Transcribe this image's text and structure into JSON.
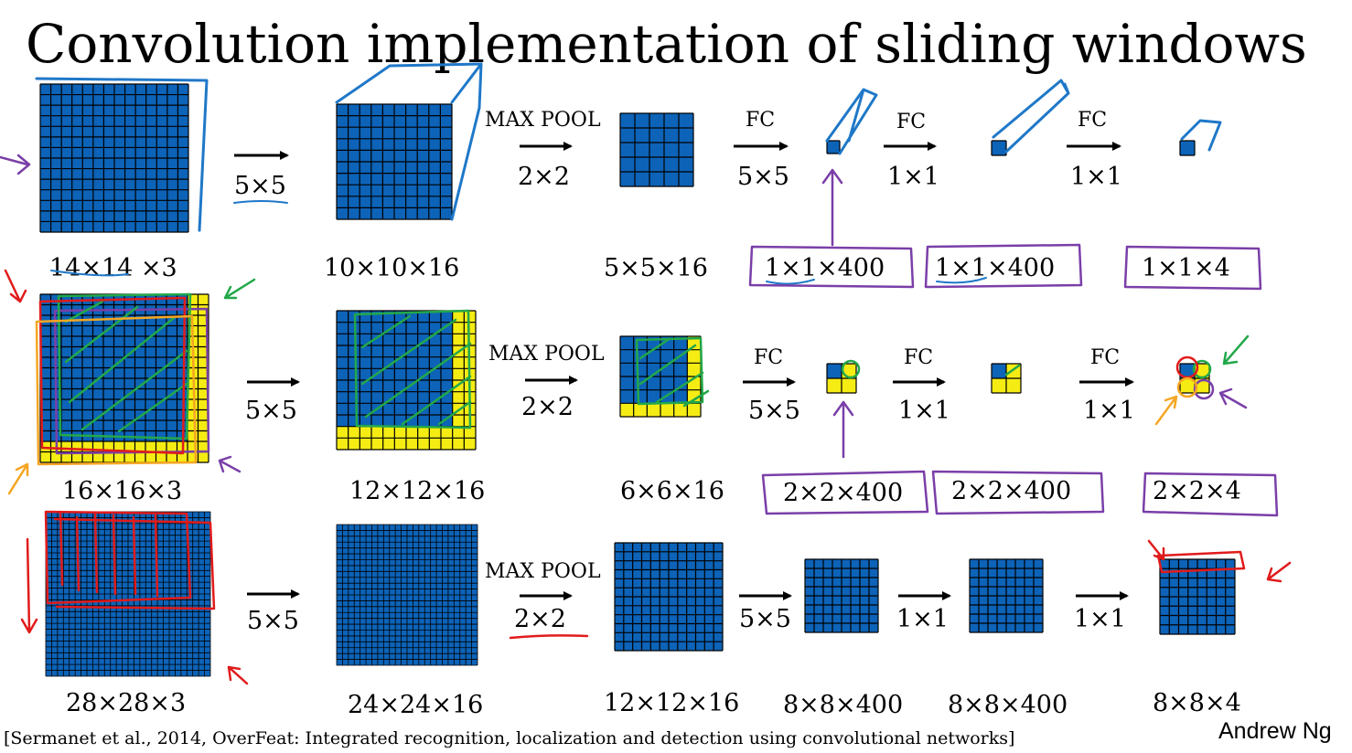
{
  "title": "Convolution implementation of sliding windows",
  "colors": {
    "grid_blue": "#0d63b8",
    "grid_yellow": "#f5ec14",
    "annot_blue": "#1f78c8",
    "annot_purple": "#7a3fa8",
    "annot_green": "#22a84a",
    "annot_red": "#e11b1b",
    "annot_orange": "#f5a623"
  },
  "rows": [
    {
      "input_label": "14×14 ×3",
      "conv": {
        "label": "5×5"
      },
      "conv_out_label": "10×10×16",
      "pool": {
        "name": "MAX POOL",
        "size": "2×2"
      },
      "pool_out_label": "5×5×16",
      "fc1": {
        "name": "FC",
        "size": "5×5"
      },
      "fc1_out_label": "1×1×400",
      "fc2": {
        "name": "FC",
        "size": "1×1"
      },
      "fc2_out_label": "1×1×400",
      "fc3": {
        "name": "FC",
        "size": "1×1"
      },
      "out_label": "1×1×4"
    },
    {
      "input_label": "16×16×3",
      "conv": {
        "label": "5×5"
      },
      "conv_out_label": "12×12×16",
      "pool": {
        "name": "MAX POOL",
        "size": "2×2"
      },
      "pool_out_label": "6×6×16",
      "fc1": {
        "name": "FC",
        "size": "5×5"
      },
      "fc1_out_label": "2×2×400",
      "fc2": {
        "name": "FC",
        "size": "1×1"
      },
      "fc2_out_label": "2×2×400",
      "fc3": {
        "name": "FC",
        "size": "1×1"
      },
      "out_label": "2×2×4"
    },
    {
      "input_label": "28×28×3",
      "conv": {
        "label": "5×5"
      },
      "conv_out_label": "24×24×16",
      "pool": {
        "name": "MAX POOL",
        "size": "2×2"
      },
      "pool_out_label": "12×12×16",
      "fc1": {
        "name": "",
        "size": "5×5"
      },
      "fc1_out_label": "8×8×400",
      "fc2": {
        "name": "",
        "size": "1×1"
      },
      "fc2_out_label": "8×8×400",
      "fc3": {
        "name": "",
        "size": "1×1"
      },
      "out_label": "8×8×4"
    }
  ],
  "citation": "[Sermanet et al., 2014, OverFeat: Integrated recognition, localization and detection using convolutional networks]",
  "author": "Andrew Ng"
}
